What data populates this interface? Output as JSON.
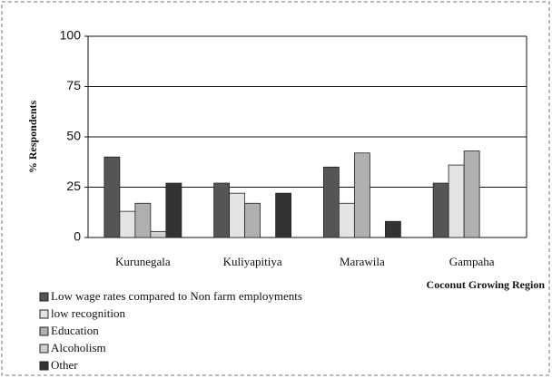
{
  "chart_data": {
    "type": "bar",
    "ylabel": "% Respondents",
    "xlabel": "Coconut Growing Region",
    "categories": [
      "Kurunegala",
      "Kuliyapitiya",
      "Marawila",
      "Gampaha"
    ],
    "series": [
      {
        "name": "Low wage rates compared to Non farm employments",
        "color": "#555555",
        "values": [
          40,
          27,
          35,
          27
        ]
      },
      {
        "name": "low recognition",
        "color": "#e4e4e4",
        "values": [
          13,
          22,
          17,
          36
        ]
      },
      {
        "name": "Education",
        "color": "#b0b0b0",
        "values": [
          17,
          17,
          42,
          43
        ]
      },
      {
        "name": "Alcoholism",
        "color": "#d0d0d0",
        "values": [
          3,
          0,
          0,
          0
        ]
      },
      {
        "name": "Other",
        "color": "#333333",
        "values": [
          27,
          22,
          8,
          0
        ]
      }
    ],
    "ylim": [
      0,
      100
    ],
    "yticks": [
      0,
      25,
      50,
      75,
      100
    ],
    "grid": true,
    "legend": "bottom-left"
  }
}
